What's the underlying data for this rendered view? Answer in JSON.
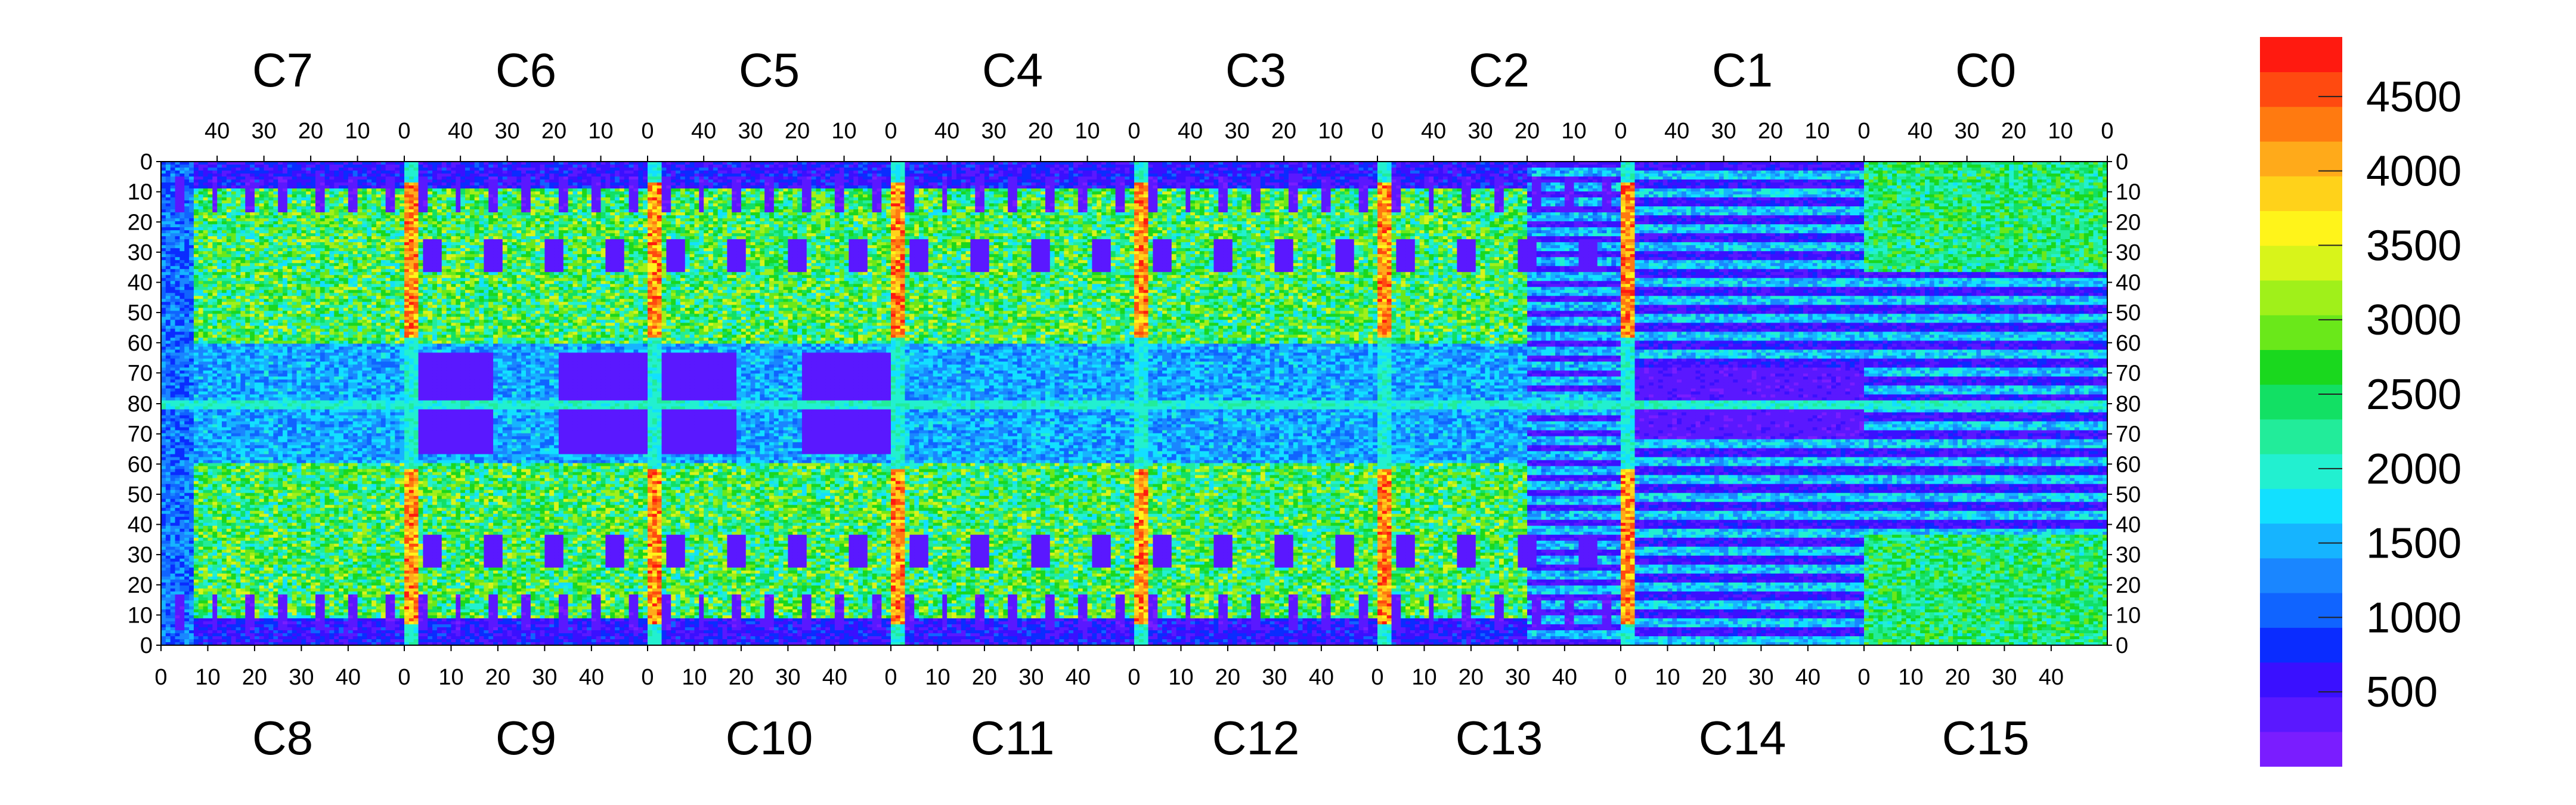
{
  "chart_data": {
    "type": "heatmap",
    "colormap": [
      "#7a1dff",
      "#5a18ff",
      "#3a10ff",
      "#0a2cff",
      "#1064ff",
      "#1a86ff",
      "#16b4ff",
      "#12e0ff",
      "#22f0d0",
      "#22ec9a",
      "#12e064",
      "#1ad81e",
      "#6ae81a",
      "#a0f01a",
      "#d8f41a",
      "#fff41a",
      "#ffd21a",
      "#ffaa1a",
      "#ff7a10",
      "#ff4a10",
      "#ff1a10"
    ],
    "colorbar": {
      "min": 0,
      "max": 4900,
      "ticks": [
        "500",
        "1000",
        "1500",
        "2000",
        "2500",
        "3000",
        "3500",
        "4000",
        "4500"
      ],
      "tick_values": [
        500,
        1000,
        1500,
        2000,
        2500,
        3000,
        3500,
        4000,
        4500
      ]
    },
    "top_chips": [
      "C7",
      "C6",
      "C5",
      "C4",
      "C3",
      "C2",
      "C1",
      "C0"
    ],
    "bottom_chips": [
      "C8",
      "C9",
      "C10",
      "C11",
      "C12",
      "C13",
      "C14",
      "C15"
    ],
    "top_x_ticks": [
      "40",
      "30",
      "20",
      "10",
      "0"
    ],
    "top_x_tick_values": [
      40,
      30,
      20,
      10,
      0
    ],
    "bottom_x_ticks": [
      "0",
      "10",
      "20",
      "30",
      "40"
    ],
    "bottom_x_tick_values": [
      0,
      10,
      20,
      30,
      40
    ],
    "top_y_ticks": [
      "0",
      "10",
      "20",
      "30",
      "40",
      "50",
      "60",
      "70"
    ],
    "bottom_y_ticks": [
      "80",
      "70",
      "60",
      "50",
      "40",
      "30",
      "20",
      "10",
      "0"
    ],
    "chip_columns": 52,
    "chip_rows": 80,
    "title": "",
    "xlabel": "",
    "ylabel": ""
  }
}
